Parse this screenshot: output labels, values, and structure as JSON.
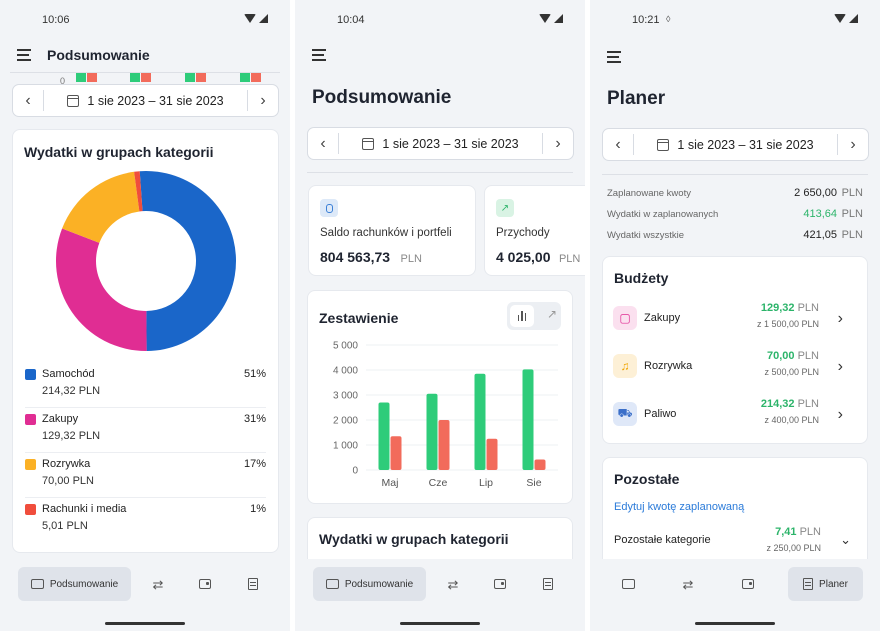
{
  "screen1": {
    "time": "10:06",
    "title": "Podsumowanie",
    "zero_tick": "0",
    "date_range": "1 sie 2023 – 31 sie 2023",
    "card_title": "Wydatki w grupach kategorii",
    "legend": [
      {
        "name": "Samochód",
        "amount": "214,32 PLN",
        "percent": "51%",
        "color": "#1a66c9"
      },
      {
        "name": "Zakupy",
        "amount": "129,32 PLN",
        "percent": "31%",
        "color": "#e02d93"
      },
      {
        "name": "Rozrywka",
        "amount": "70,00 PLN",
        "percent": "17%",
        "color": "#fbb125"
      },
      {
        "name": "Rachunki i media",
        "amount": "5,01 PLN",
        "percent": "1%",
        "color": "#f04d3c"
      }
    ],
    "donut_values": [
      51,
      31,
      17,
      1
    ],
    "nav_active_label": "Podsumowanie"
  },
  "screen2": {
    "time": "10:04",
    "title": "Podsumowanie",
    "date_range": "1 sie 2023 – 31 sie 2023",
    "balance_label": "Saldo rachunków i portfeli",
    "balance_value": "804 563,73",
    "balance_unit": "PLN",
    "income_label": "Przychody",
    "income_value": "4 025,00",
    "income_unit": "PLN",
    "chart_title": "Zestawienie",
    "next_card_title": "Wydatki w grupach kategorii",
    "nav_active_label": "Podsumowanie"
  },
  "chart_data": {
    "type": "bar",
    "categories": [
      "Maj",
      "Cze",
      "Lip",
      "Sie"
    ],
    "series": [
      {
        "values": [
          2700,
          3050,
          3850,
          4025
        ],
        "color": "#2ecc7a"
      },
      {
        "values": [
          1350,
          2000,
          1250,
          420
        ],
        "color": "#f26b5b"
      }
    ],
    "yticks": [
      "0",
      "1 000",
      "2 000",
      "3 000",
      "4 000",
      "5 000"
    ],
    "ylim": [
      0,
      5000
    ]
  },
  "screen3": {
    "time": "10:21",
    "title": "Planer",
    "date_range": "1 sie 2023 – 31 sie 2023",
    "summary": [
      {
        "label": "Zaplanowane kwoty",
        "value": "2 650,00",
        "unit": "PLN",
        "color": "#222222"
      },
      {
        "label": "Wydatki w zaplanowanych",
        "value": "413,64",
        "unit": "PLN",
        "color": "#2cb46a"
      },
      {
        "label": "Wydatki wszystkie",
        "value": "421,05",
        "unit": "PLN",
        "color": "#222222"
      }
    ],
    "budgets_title": "Budżety",
    "budgets": [
      {
        "name": "Zakupy",
        "value": "129,32",
        "unit": "PLN",
        "limit": "z 1 500,00 PLN",
        "icon": "shopping-bag-icon"
      },
      {
        "name": "Rozrywka",
        "value": "70,00",
        "unit": "PLN",
        "limit": "z 500,00 PLN",
        "icon": "music-note-icon"
      },
      {
        "name": "Paliwo",
        "value": "214,32",
        "unit": "PLN",
        "limit": "z 400,00 PLN",
        "icon": "car-icon"
      }
    ],
    "other_title": "Pozostałe",
    "edit_link": "Edytuj kwotę zaplanowaną",
    "other_category": "Pozostałe kategorie",
    "other_value": "7,41",
    "other_unit": "PLN",
    "other_limit": "z 250,00 PLN",
    "nav_active_label": "Planer"
  }
}
